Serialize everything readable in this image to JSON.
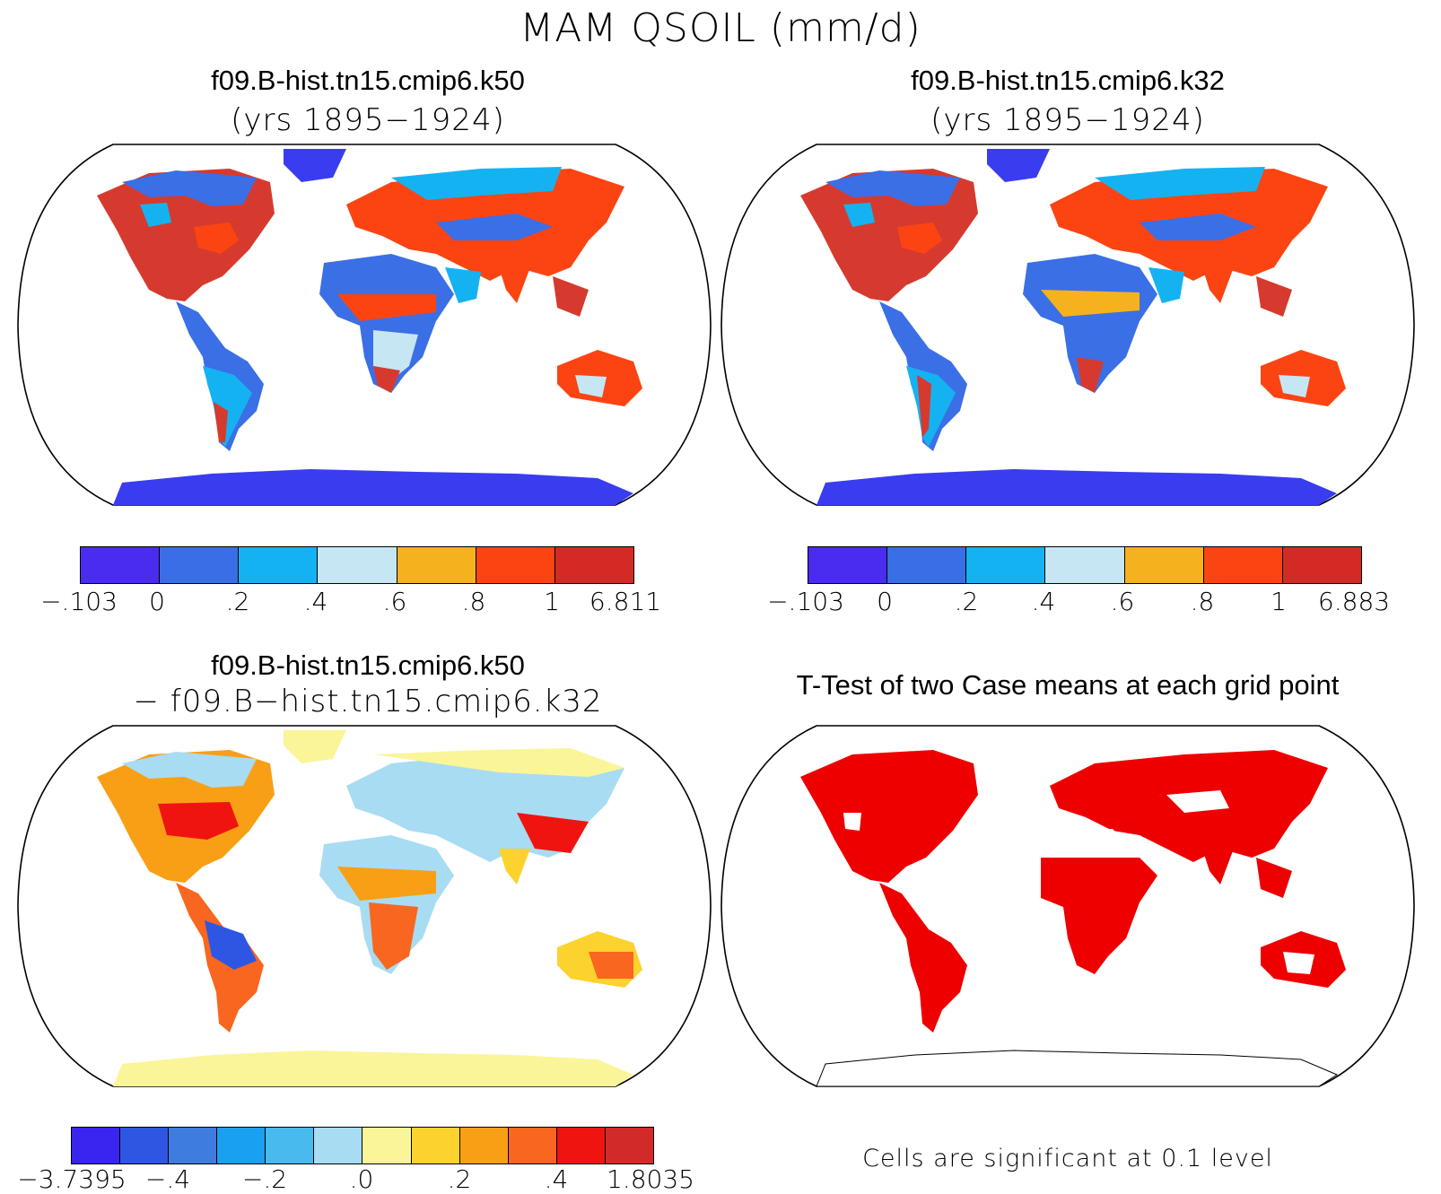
{
  "title": "MAM QSOIL (mm/d)",
  "panels": [
    {
      "title": "f09.B-hist.tn15.cmip6.k50",
      "subtitle": "(yrs 1895−1924)",
      "colorbar": {
        "labels": [
          "-.103",
          "0",
          ".2",
          ".4",
          ".6",
          ".8",
          "1",
          "6.811"
        ],
        "colors": [
          "#4a2cf0",
          "#3a6ee6",
          "#15b2f2",
          "#c6e6f4",
          "#f6b21c",
          "#fb4412",
          "#d42a26"
        ]
      }
    },
    {
      "title": "f09.B-hist.tn15.cmip6.k32",
      "subtitle": "(yrs 1895−1924)",
      "colorbar": {
        "labels": [
          "-.103",
          "0",
          ".2",
          ".4",
          ".6",
          ".8",
          "1",
          "6.883"
        ],
        "colors": [
          "#4a2cf0",
          "#3a6ee6",
          "#15b2f2",
          "#c6e6f4",
          "#f6b21c",
          "#fb4412",
          "#d42a26"
        ]
      }
    },
    {
      "title": "f09.B-hist.tn15.cmip6.k50",
      "subtitle": "− f09.B−hist.tn15.cmip6.k32",
      "colorbar": {
        "labels": [
          "-3.7395",
          "-.4",
          "-.2",
          ".0",
          ".2",
          ".4",
          "1.8035"
        ],
        "colors": [
          "#3a24f0",
          "#2f56e2",
          "#3e7ce0",
          "#1aa0f0",
          "#48baee",
          "#a8dcf2",
          "#fbf59a",
          "#fcd22e",
          "#f99f16",
          "#f96620",
          "#f01410",
          "#d22a28"
        ]
      }
    },
    {
      "title": "T-Test of two Case means at each grid point",
      "note": "Cells are significant at 0.1 level",
      "fill_color": "#ee0000"
    }
  ]
}
